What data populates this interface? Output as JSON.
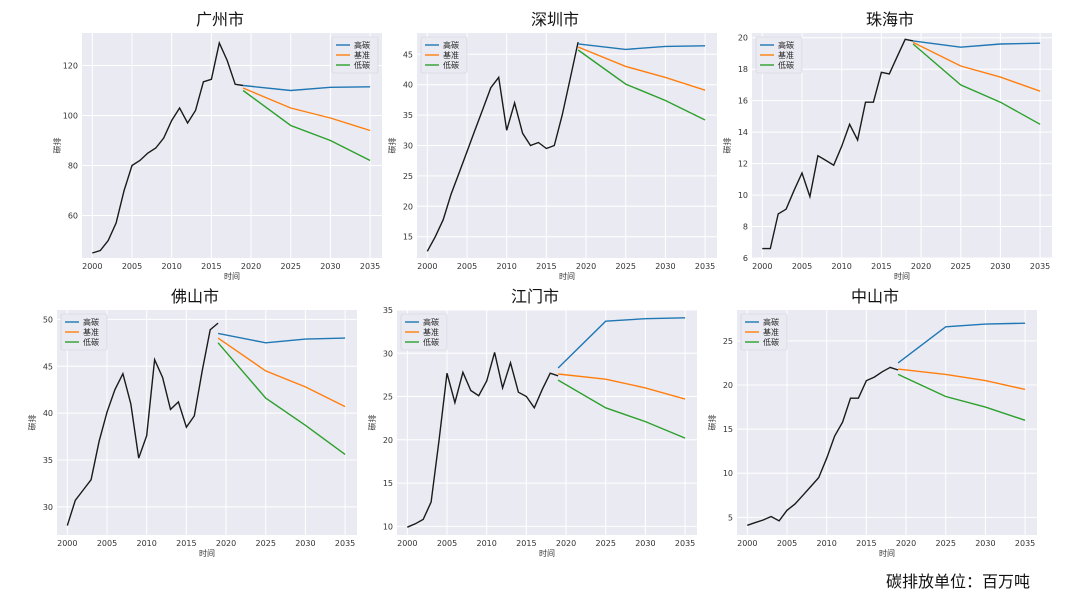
{
  "footnote": "碳排放单位：百万吨",
  "colors": {
    "history": "#1a1a1a",
    "高碳": "#1f77b4",
    "基准": "#ff7f0e",
    "低碳": "#2ca02c",
    "plot_bg": "#eaeaf2",
    "grid": "#ffffff"
  },
  "chart_data": [
    {
      "type": "line",
      "title": "广州市",
      "xlabel": "时间",
      "ylabel": "碳排",
      "xlim": [
        1998.7,
        2036.5
      ],
      "ylim": [
        43,
        133
      ],
      "xticks": [
        2000,
        2005,
        2010,
        2015,
        2020,
        2025,
        2030,
        2035
      ],
      "yticks": [
        60,
        80,
        100,
        120
      ],
      "legend": [
        "高碳",
        "基准",
        "低碳"
      ],
      "legend_position": "top-right",
      "history": {
        "x": [
          2000,
          2001,
          2002,
          2003,
          2004,
          2005,
          2006,
          2007,
          2008,
          2009,
          2010,
          2011,
          2012,
          2013,
          2014,
          2015,
          2016,
          2017,
          2018,
          2019
        ],
        "y": [
          45,
          46,
          50,
          57,
          70,
          80,
          82,
          85,
          87,
          91,
          98,
          103,
          97,
          102,
          113.5,
          114.5,
          129,
          122,
          112.5,
          112
        ]
      },
      "series": [
        {
          "name": "高碳",
          "x": [
            2019,
            2025,
            2030,
            2035
          ],
          "y": [
            112,
            110,
            111.3,
            111.5
          ]
        },
        {
          "name": "基准",
          "x": [
            2019,
            2025,
            2030,
            2035
          ],
          "y": [
            111,
            103,
            99,
            94
          ]
        },
        {
          "name": "低碳",
          "x": [
            2019,
            2025,
            2030,
            2035
          ],
          "y": [
            110,
            96,
            90,
            82
          ]
        }
      ]
    },
    {
      "type": "line",
      "title": "深圳市",
      "xlabel": "时间",
      "ylabel": "碳排",
      "xlim": [
        1998.7,
        2036.5
      ],
      "ylim": [
        11.5,
        48.5
      ],
      "xticks": [
        2000,
        2005,
        2010,
        2015,
        2020,
        2025,
        2030,
        2035
      ],
      "yticks": [
        15,
        20,
        25,
        30,
        35,
        40,
        45
      ],
      "legend": [
        "高碳",
        "基准",
        "低碳"
      ],
      "legend_position": "top-left",
      "history": {
        "x": [
          2000,
          2001,
          2002,
          2003,
          2004,
          2005,
          2006,
          2007,
          2008,
          2009,
          2010,
          2011,
          2012,
          2013,
          2014,
          2015,
          2016,
          2017,
          2018,
          2019
        ],
        "y": [
          12.6,
          15,
          17.8,
          22,
          25.5,
          29,
          32.5,
          36,
          39.5,
          41.2,
          32.5,
          37,
          32,
          30,
          30.5,
          29.5,
          30,
          35,
          41,
          47
        ]
      },
      "series": [
        {
          "name": "高碳",
          "x": [
            2019,
            2025,
            2030,
            2035
          ],
          "y": [
            46.7,
            45.8,
            46.3,
            46.4
          ]
        },
        {
          "name": "基准",
          "x": [
            2019,
            2025,
            2030,
            2035
          ],
          "y": [
            46.2,
            43,
            41.2,
            39.1
          ]
        },
        {
          "name": "低碳",
          "x": [
            2019,
            2025,
            2030,
            2035
          ],
          "y": [
            45.7,
            40.1,
            37.4,
            34.2
          ]
        }
      ]
    },
    {
      "type": "line",
      "title": "珠海市",
      "xlabel": "时间",
      "ylabel": "碳排",
      "xlim": [
        1998.7,
        2036.5
      ],
      "ylim": [
        6,
        20.3
      ],
      "xticks": [
        2000,
        2005,
        2010,
        2015,
        2020,
        2025,
        2030,
        2035
      ],
      "yticks": [
        6,
        8,
        10,
        12,
        14,
        16,
        18,
        20
      ],
      "legend": [
        "高碳",
        "基准",
        "低碳"
      ],
      "legend_position": "top-left",
      "history": {
        "x": [
          2000,
          2001,
          2002,
          2003,
          2004,
          2005,
          2006,
          2007,
          2008,
          2009,
          2010,
          2011,
          2012,
          2013,
          2014,
          2015,
          2016,
          2017,
          2018,
          2019
        ],
        "y": [
          6.6,
          6.6,
          8.8,
          9.1,
          10.3,
          11.4,
          9.9,
          12.5,
          12.2,
          11.9,
          13.1,
          14.5,
          13.5,
          15.9,
          15.9,
          17.8,
          17.7,
          18.8,
          19.9,
          19.8
        ]
      },
      "series": [
        {
          "name": "高碳",
          "x": [
            2019,
            2025,
            2030,
            2035
          ],
          "y": [
            19.8,
            19.4,
            19.6,
            19.65
          ]
        },
        {
          "name": "基准",
          "x": [
            2019,
            2025,
            2030,
            2035
          ],
          "y": [
            19.7,
            18.2,
            17.5,
            16.6
          ]
        },
        {
          "name": "低碳",
          "x": [
            2019,
            2025,
            2030,
            2035
          ],
          "y": [
            19.6,
            17.0,
            15.9,
            14.5
          ]
        }
      ]
    },
    {
      "type": "line",
      "title": "佛山市",
      "xlabel": "时间",
      "ylabel": "碳排",
      "xlim": [
        1998.7,
        2036.5
      ],
      "ylim": [
        27,
        51
      ],
      "xticks": [
        2000,
        2005,
        2010,
        2015,
        2020,
        2025,
        2030,
        2035
      ],
      "yticks": [
        30,
        35,
        40,
        45,
        50
      ],
      "legend": [
        "高碳",
        "基准",
        "低碳"
      ],
      "legend_position": "top-left",
      "history": {
        "x": [
          2000,
          2001,
          2002,
          2003,
          2004,
          2005,
          2006,
          2007,
          2008,
          2009,
          2010,
          2011,
          2012,
          2013,
          2014,
          2015,
          2016,
          2017,
          2018,
          2019
        ],
        "y": [
          28,
          30.7,
          31.8,
          32.9,
          37,
          40.1,
          42.5,
          44.2,
          41,
          35.2,
          37.6,
          45.7,
          43.8,
          40.4,
          41.2,
          38.5,
          39.7,
          44.5,
          48.9,
          49.6
        ]
      },
      "series": [
        {
          "name": "高碳",
          "x": [
            2019,
            2025,
            2030,
            2035
          ],
          "y": [
            48.5,
            47.5,
            47.9,
            48
          ]
        },
        {
          "name": "基准",
          "x": [
            2019,
            2025,
            2030,
            2035
          ],
          "y": [
            48,
            44.5,
            42.8,
            40.7
          ]
        },
        {
          "name": "低碳",
          "x": [
            2019,
            2025,
            2030,
            2035
          ],
          "y": [
            47.5,
            41.6,
            38.7,
            35.6
          ]
        }
      ]
    },
    {
      "type": "line",
      "title": "江门市",
      "xlabel": "时间",
      "ylabel": "碳排",
      "xlim": [
        1998.7,
        2036.5
      ],
      "ylim": [
        9,
        35
      ],
      "xticks": [
        2000,
        2005,
        2010,
        2015,
        2020,
        2025,
        2030,
        2035
      ],
      "yticks": [
        10,
        15,
        20,
        25,
        30,
        35
      ],
      "legend": [
        "高碳",
        "基准",
        "低碳"
      ],
      "legend_position": "top-left",
      "history": {
        "x": [
          2000,
          2001,
          2002,
          2003,
          2004,
          2005,
          2006,
          2007,
          2008,
          2009,
          2010,
          2011,
          2012,
          2013,
          2014,
          2015,
          2016,
          2017,
          2018,
          2019
        ],
        "y": [
          9.9,
          10.3,
          10.8,
          12.8,
          20,
          27.7,
          24.3,
          27.8,
          25.7,
          25.1,
          26.8,
          30.1,
          26,
          28.9,
          25.5,
          25,
          23.7,
          25.8,
          27.7,
          27.4
        ]
      },
      "series": [
        {
          "name": "高碳",
          "x": [
            2019,
            2025,
            2030,
            2035
          ],
          "y": [
            28.3,
            33.7,
            34,
            34.1
          ]
        },
        {
          "name": "基准",
          "x": [
            2019,
            2025,
            2030,
            2035
          ],
          "y": [
            27.6,
            27,
            26,
            24.7
          ]
        },
        {
          "name": "低碳",
          "x": [
            2019,
            2025,
            2030,
            2035
          ],
          "y": [
            26.9,
            23.7,
            22.1,
            20.2
          ]
        }
      ]
    },
    {
      "type": "line",
      "title": "中山市",
      "xlabel": "时间",
      "ylabel": "碳排",
      "xlim": [
        1998.7,
        2036.5
      ],
      "ylim": [
        3,
        28.5
      ],
      "xticks": [
        2000,
        2005,
        2010,
        2015,
        2020,
        2025,
        2030,
        2035
      ],
      "yticks": [
        5,
        10,
        15,
        20,
        25
      ],
      "legend": [
        "高碳",
        "基准",
        "低碳"
      ],
      "legend_position": "top-left",
      "history": {
        "x": [
          2000,
          2001,
          2002,
          2003,
          2004,
          2005,
          2006,
          2007,
          2008,
          2009,
          2010,
          2011,
          2012,
          2013,
          2014,
          2015,
          2016,
          2017,
          2018,
          2019
        ],
        "y": [
          4.1,
          4.4,
          4.7,
          5.1,
          4.6,
          5.8,
          6.5,
          7.5,
          8.5,
          9.5,
          11.7,
          14.2,
          15.8,
          18.5,
          18.5,
          20.5,
          20.9,
          21.5,
          22,
          21.7
        ]
      },
      "series": [
        {
          "name": "高碳",
          "x": [
            2019,
            2025,
            2030,
            2035
          ],
          "y": [
            22.5,
            26.6,
            26.9,
            27
          ]
        },
        {
          "name": "基准",
          "x": [
            2019,
            2025,
            2030,
            2035
          ],
          "y": [
            21.8,
            21.2,
            20.5,
            19.5
          ]
        },
        {
          "name": "低碳",
          "x": [
            2019,
            2025,
            2030,
            2035
          ],
          "y": [
            21.2,
            18.7,
            17.5,
            16
          ]
        }
      ]
    }
  ]
}
